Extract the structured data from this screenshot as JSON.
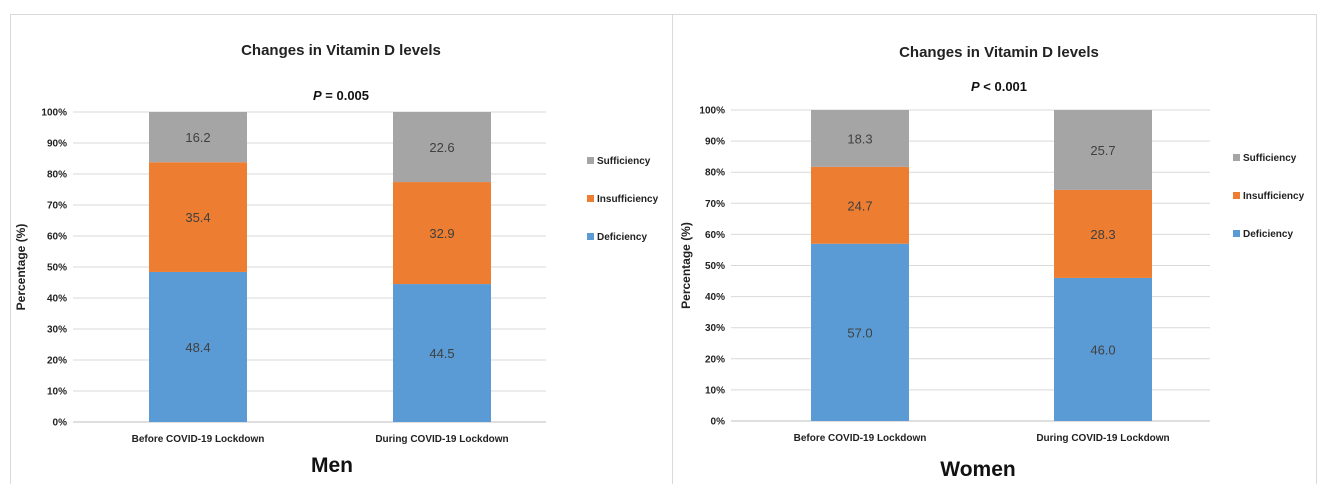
{
  "chart_data": [
    {
      "type": "bar",
      "stacked": true,
      "title": "Changes in Vitamin D levels",
      "p_prefix": "P",
      "p_rest": " = 0.005",
      "group_label": "Men",
      "ylabel": "Percentage (%)",
      "ylim": [
        0,
        100
      ],
      "yticks": [
        "0%",
        "10%",
        "20%",
        "30%",
        "40%",
        "50%",
        "60%",
        "70%",
        "80%",
        "90%",
        "100%"
      ],
      "categories": [
        "Before COVID-19 Lockdown",
        "During COVID-19 Lockdown"
      ],
      "series": [
        {
          "name": "Deficiency",
          "color": "#5b9bd5",
          "values": [
            48.4,
            44.5
          ],
          "labels": [
            "48.4",
            "44.5"
          ]
        },
        {
          "name": "Insufficiency",
          "color": "#ed7d31",
          "values": [
            35.4,
            32.9
          ],
          "labels": [
            "35.4",
            "32.9"
          ]
        },
        {
          "name": "Sufficiency",
          "color": "#a5a5a5",
          "values": [
            16.2,
            22.6
          ],
          "labels": [
            "16.2",
            "22.6"
          ]
        }
      ],
      "legend_order": [
        "Sufficiency",
        "Insufficiency",
        "Deficiency"
      ],
      "legend_position": "right",
      "grid": true
    },
    {
      "type": "bar",
      "stacked": true,
      "title": "Changes in Vitamin D levels",
      "p_prefix": "P",
      "p_rest": " < 0.001",
      "group_label": "Women",
      "ylabel": "Percentage (%)",
      "ylim": [
        0,
        100
      ],
      "yticks": [
        "0%",
        "10%",
        "20%",
        "30%",
        "40%",
        "50%",
        "60%",
        "70%",
        "80%",
        "90%",
        "100%"
      ],
      "categories": [
        "Before COVID-19 Lockdown",
        "During COVID-19 Lockdown"
      ],
      "series": [
        {
          "name": "Deficiency",
          "color": "#5b9bd5",
          "values": [
            57.0,
            46.0
          ],
          "labels": [
            "57.0",
            "46.0"
          ]
        },
        {
          "name": "Insufficiency",
          "color": "#ed7d31",
          "values": [
            24.7,
            28.3
          ],
          "labels": [
            "24.7",
            "28.3"
          ]
        },
        {
          "name": "Sufficiency",
          "color": "#a5a5a5",
          "values": [
            18.3,
            25.7
          ],
          "labels": [
            "18.3",
            "25.7"
          ]
        }
      ],
      "legend_order": [
        "Sufficiency",
        "Insufficiency",
        "Deficiency"
      ],
      "legend_position": "right",
      "grid": true
    }
  ]
}
